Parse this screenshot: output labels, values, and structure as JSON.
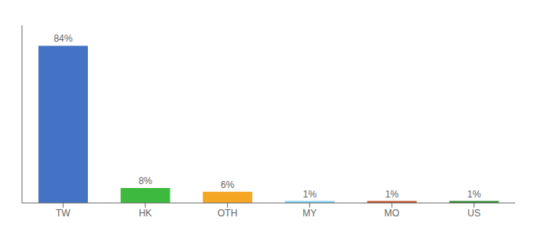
{
  "chart_data": {
    "type": "bar",
    "categories": [
      "TW",
      "HK",
      "OTH",
      "MY",
      "MO",
      "US"
    ],
    "values": [
      84,
      8,
      6,
      1,
      1,
      1
    ],
    "value_labels": [
      "84%",
      "8%",
      "6%",
      "1%",
      "1%",
      "1%"
    ],
    "data_labels": true,
    "colors": [
      "#4472c4",
      "#3dba3d",
      "#f5a623",
      "#7ecef4",
      "#c0522a",
      "#2d862d"
    ],
    "ylim": [
      0,
      95
    ],
    "tick_labels": "x",
    "grid": false
  }
}
